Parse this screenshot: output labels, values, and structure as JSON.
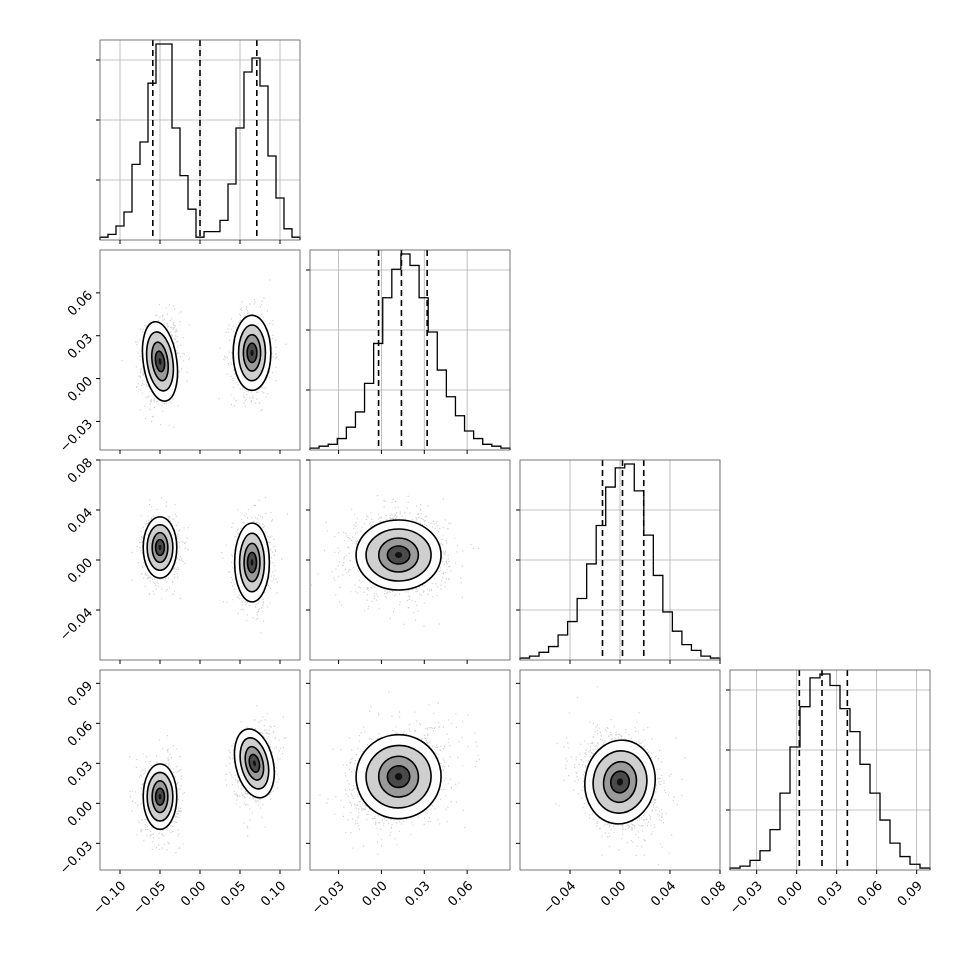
{
  "chart_data": {
    "type": "corner",
    "n_dims": 4,
    "histograms": [
      {
        "dim": 0,
        "range": [
          -0.125,
          0.125
        ],
        "ticks": [
          -0.1,
          -0.05,
          0.0,
          0.05,
          0.1
        ],
        "tick_labels": [
          "−0.10",
          "−0.05",
          "0.00",
          "0.05",
          "0.10"
        ],
        "quantiles": [
          -0.059,
          0.0,
          0.071
        ],
        "counts": [
          1,
          2,
          5,
          10,
          27,
          35,
          56,
          70,
          70,
          40,
          23,
          11,
          1,
          3,
          3,
          7,
          20,
          40,
          60,
          65,
          55,
          30,
          15,
          4,
          1
        ],
        "y_ticks": [
          0.3,
          0.6,
          0.9
        ]
      },
      {
        "dim": 1,
        "range": [
          -0.05,
          0.09
        ],
        "ticks": [
          -0.03,
          0.0,
          0.03,
          0.06
        ],
        "tick_labels": [
          "−0.03",
          "0.00",
          "0.03",
          "0.06"
        ],
        "quantiles": [
          -0.002,
          0.014,
          0.032
        ],
        "counts": [
          1,
          2,
          3,
          6,
          12,
          20,
          35,
          56,
          80,
          95,
          103,
          97,
          80,
          62,
          42,
          28,
          18,
          10,
          6,
          3,
          2,
          1
        ],
        "y_ticks": [
          0.3,
          0.6,
          0.9
        ]
      },
      {
        "dim": 2,
        "range": [
          -0.08,
          0.08
        ],
        "ticks": [
          -0.04,
          0.0,
          0.04,
          0.08
        ],
        "tick_labels": [
          "−0.04",
          "0.00",
          "0.04",
          "0.08"
        ],
        "quantiles": [
          -0.014,
          0.002,
          0.019
        ],
        "counts": [
          1,
          2,
          4,
          7,
          13,
          20,
          32,
          50,
          70,
          90,
          100,
          102,
          88,
          65,
          44,
          25,
          15,
          8,
          5,
          2,
          1
        ],
        "y_ticks": [
          0.25,
          0.5,
          0.75
        ]
      },
      {
        "dim": 3,
        "range": [
          -0.05,
          0.1
        ],
        "ticks": [
          -0.03,
          0.0,
          0.03,
          0.06,
          0.09
        ],
        "tick_labels": [
          "−0.03",
          "0.00",
          "0.03",
          "0.06",
          "0.09"
        ],
        "quantiles": [
          0.002,
          0.019,
          0.038
        ],
        "counts": [
          1,
          2,
          5,
          10,
          21,
          40,
          64,
          85,
          100,
          102,
          96,
          84,
          72,
          55,
          40,
          26,
          14,
          7,
          3,
          1
        ],
        "y_ticks": [
          0.3,
          0.6,
          0.9
        ]
      }
    ],
    "y_axis_ticks": {
      "1": {
        "ticks": [
          -0.03,
          0.0,
          0.03,
          0.06
        ],
        "tick_labels": [
          "−0.03",
          "0.00",
          "0.03",
          "0.06"
        ]
      },
      "2": {
        "ticks": [
          -0.04,
          0.0,
          0.04,
          0.08
        ],
        "tick_labels": [
          "−0.04",
          "0.00",
          "0.04",
          "0.08"
        ]
      },
      "3": {
        "ticks": [
          -0.03,
          0.0,
          0.03,
          0.06,
          0.09
        ],
        "tick_labels": [
          "−0.03",
          "0.00",
          "0.03",
          "0.06",
          "0.09"
        ]
      }
    },
    "scatter_panels": [
      {
        "row": 1,
        "col": 0,
        "blobs": [
          {
            "cx": -0.05,
            "cy": 0.012,
            "sx": 0.012,
            "sy": 0.016,
            "rho": 0.1
          },
          {
            "cx": 0.065,
            "cy": 0.018,
            "sx": 0.013,
            "sy": 0.015,
            "rho": 0.0
          }
        ]
      },
      {
        "row": 2,
        "col": 0,
        "blobs": [
          {
            "cx": -0.05,
            "cy": 0.01,
            "sx": 0.012,
            "sy": 0.014,
            "rho": 0.0
          },
          {
            "cx": 0.065,
            "cy": -0.002,
            "sx": 0.012,
            "sy": 0.018,
            "rho": 0.0
          }
        ]
      },
      {
        "row": 2,
        "col": 1,
        "blobs": [
          {
            "cx": 0.012,
            "cy": 0.004,
            "sx": 0.017,
            "sy": 0.016,
            "rho": 0.0
          }
        ]
      },
      {
        "row": 3,
        "col": 0,
        "blobs": [
          {
            "cx": -0.05,
            "cy": 0.005,
            "sx": 0.012,
            "sy": 0.014,
            "rho": 0.0
          },
          {
            "cx": 0.068,
            "cy": 0.03,
            "sx": 0.013,
            "sy": 0.015,
            "rho": 0.2
          }
        ]
      },
      {
        "row": 3,
        "col": 1,
        "blobs": [
          {
            "cx": 0.012,
            "cy": 0.02,
            "sx": 0.017,
            "sy": 0.018,
            "rho": 0.25
          }
        ]
      },
      {
        "row": 3,
        "col": 2,
        "blobs": [
          {
            "cx": 0.0,
            "cy": 0.016,
            "sx": 0.016,
            "sy": 0.018,
            "rho": -0.2
          }
        ]
      }
    ]
  }
}
